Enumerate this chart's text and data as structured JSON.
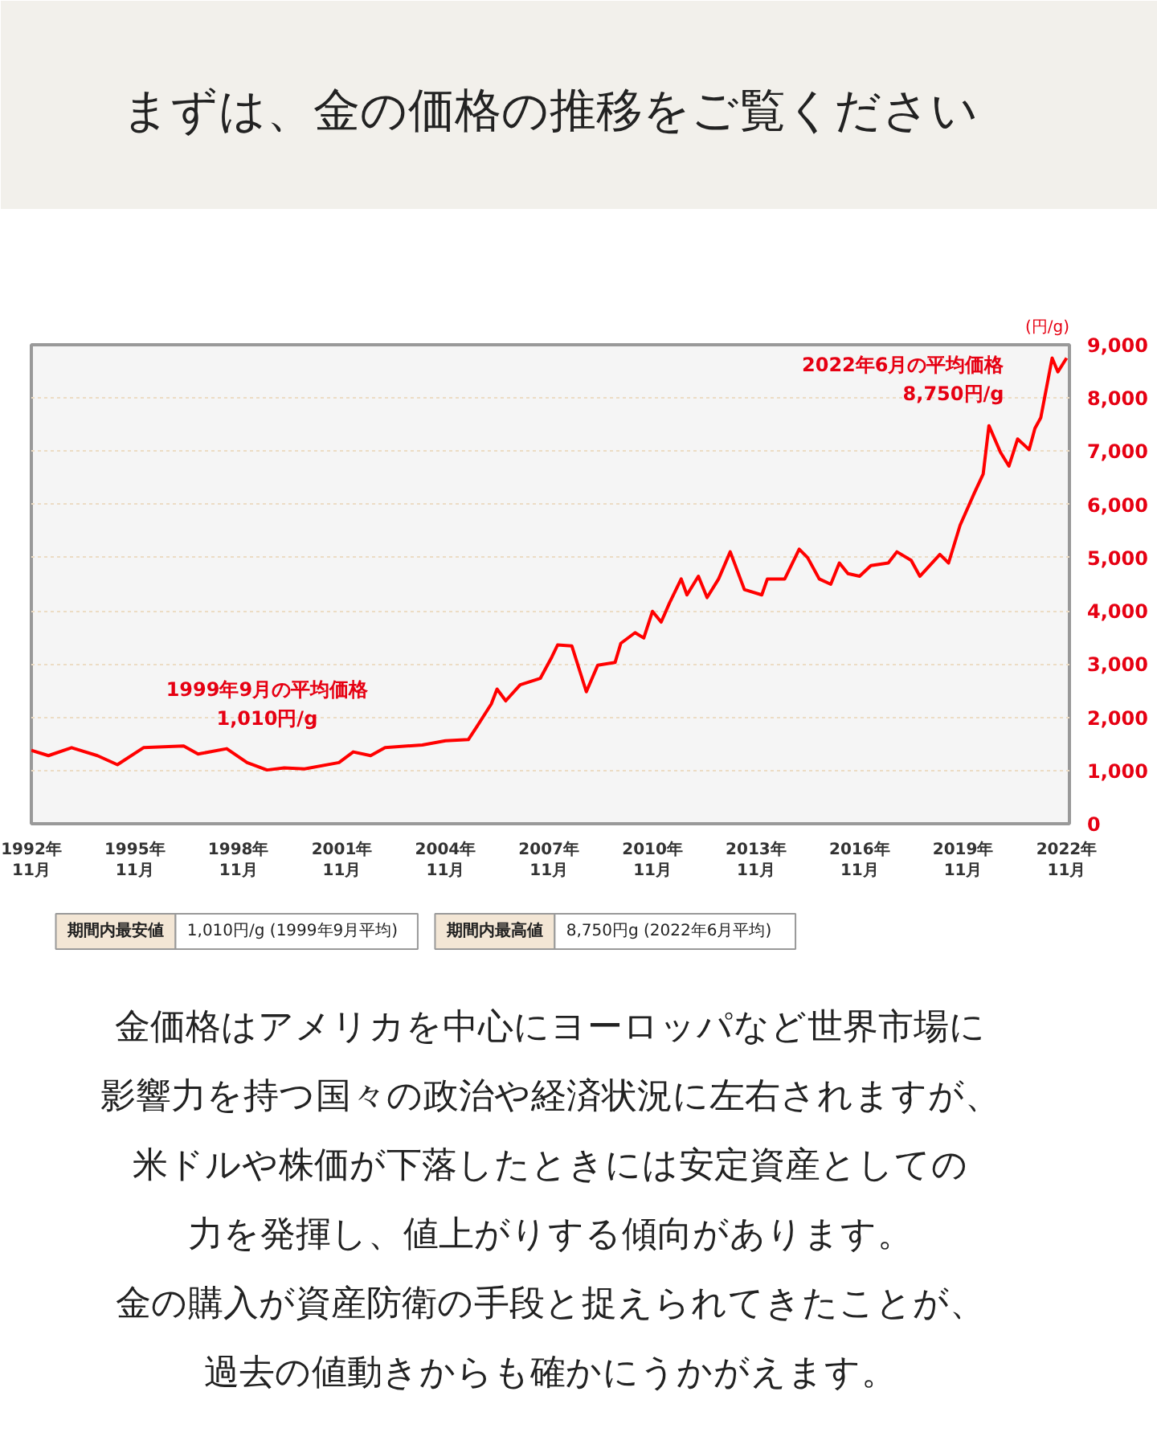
{
  "chart_data": {
    "type": "line",
    "title": "まずは、金の価格の推移をご覧ください",
    "ylabel": "(円/g)",
    "x": [
      "1992-11",
      "1993-05",
      "1994-01",
      "1994-10",
      "1995-05",
      "1996-02",
      "1997-04",
      "1997-09",
      "1998-07",
      "1999-02",
      "1999-09",
      "2000-03",
      "2000-10",
      "2001-10",
      "2002-03",
      "2002-09",
      "2003-02",
      "2004-03",
      "2004-11",
      "2005-07",
      "2005-10",
      "2006-03",
      "2006-05",
      "2006-08",
      "2007-01",
      "2007-08",
      "2007-12",
      "2008-02",
      "2008-07",
      "2008-12",
      "2009-04",
      "2009-10",
      "2009-12",
      "2010-05",
      "2010-08",
      "2010-11",
      "2011-02",
      "2011-05",
      "2011-09",
      "2011-11",
      "2012-03",
      "2012-06",
      "2012-10",
      "2013-02",
      "2013-07",
      "2014-01",
      "2014-03",
      "2014-09",
      "2015-02",
      "2015-05",
      "2015-09",
      "2016-01",
      "2016-04",
      "2016-07",
      "2016-11",
      "2017-03",
      "2017-09",
      "2017-12",
      "2018-05",
      "2018-08",
      "2019-03",
      "2019-06",
      "2019-10",
      "2020-03",
      "2020-06",
      "2020-08",
      "2020-12",
      "2021-03",
      "2021-06",
      "2021-10",
      "2021-12",
      "2022-02",
      "2022-06",
      "2022-08",
      "2022-11"
    ],
    "series": [
      {
        "color": "#ff0000",
        "values": [
          1380,
          1280,
          1430,
          1280,
          1110,
          1430,
          1460,
          1310,
          1410,
          1150,
          1010,
          1050,
          1030,
          1150,
          1350,
          1280,
          1430,
          1480,
          1560,
          1580,
          1830,
          2250,
          2530,
          2310,
          2610,
          2730,
          3130,
          3360,
          3340,
          2480,
          2980,
          3030,
          3390,
          3590,
          3490,
          3990,
          3790,
          4150,
          4600,
          4300,
          4650,
          4250,
          4600,
          5110,
          4400,
          4300,
          4600,
          4600,
          5160,
          5000,
          4600,
          4500,
          4900,
          4700,
          4650,
          4850,
          4900,
          5110,
          4950,
          4650,
          5060,
          4900,
          5610,
          6220,
          6570,
          7480,
          6980,
          6720,
          7230,
          7030,
          7430,
          7630,
          8750,
          8490,
          8750
        ]
      }
    ],
    "xlim": [
      "1992-11",
      "2022-12"
    ],
    "xticks": [
      {
        "value": "1992-11",
        "label": "1992年\n11月"
      },
      {
        "value": "1995-11",
        "label": "1995年\n11月"
      },
      {
        "value": "1998-11",
        "label": "1998年\n11月"
      },
      {
        "value": "2001-11",
        "label": "2001年\n11月"
      },
      {
        "value": "2004-11",
        "label": "2004年\n11月"
      },
      {
        "value": "2007-11",
        "label": "2007年\n11月"
      },
      {
        "value": "2010-11",
        "label": "2010年\n11月"
      },
      {
        "value": "2013-11",
        "label": "2013年\n11月"
      },
      {
        "value": "2016-11",
        "label": "2016年\n11月"
      },
      {
        "value": "2019-11",
        "label": "2019年\n11月"
      },
      {
        "value": "2022-11",
        "label": "2022年\n11月"
      }
    ],
    "ylim": [
      0,
      9000
    ],
    "yticks": [
      0,
      {
        "value": 1000,
        "label": "1,000"
      },
      {
        "value": 2000,
        "label": "2,000"
      },
      {
        "value": 3000,
        "label": "3,000"
      },
      {
        "value": 4000,
        "label": "4,000"
      },
      {
        "value": 5000,
        "label": "5,000"
      },
      {
        "value": 6000,
        "label": "6,000"
      },
      {
        "value": 7000,
        "label": "7,000"
      },
      {
        "value": 8000,
        "label": "8,000"
      },
      {
        "value": 9000,
        "label": "9,000"
      }
    ],
    "grid": "y",
    "annotations": [
      {
        "text": "1999年9月の平均価格\n1,010円/g",
        "x": "1999-09",
        "y": 1010
      },
      {
        "text": "2022年6月の平均価格\n8,750円/g",
        "x": "2022-06",
        "y": 8750
      },
      "期間内最安値",
      "1,010円/g (1999年9月平均)",
      "期間内最高値",
      "8,750円g (2022年6月平均)",
      "金価格はアメリカを中心にヨーロッパなど世界市場に",
      "影響力を持つ国々の政治や経済状況に左右されますが、",
      "米ドルや株価が下落したときには安定資産としての",
      "力を発揮し、値上がりする傾向があります。",
      "金の購入が資産防衛の手段と捉えられてきたことが、",
      "過去の値動きからも確かにうかがえます。"
    ]
  }
}
